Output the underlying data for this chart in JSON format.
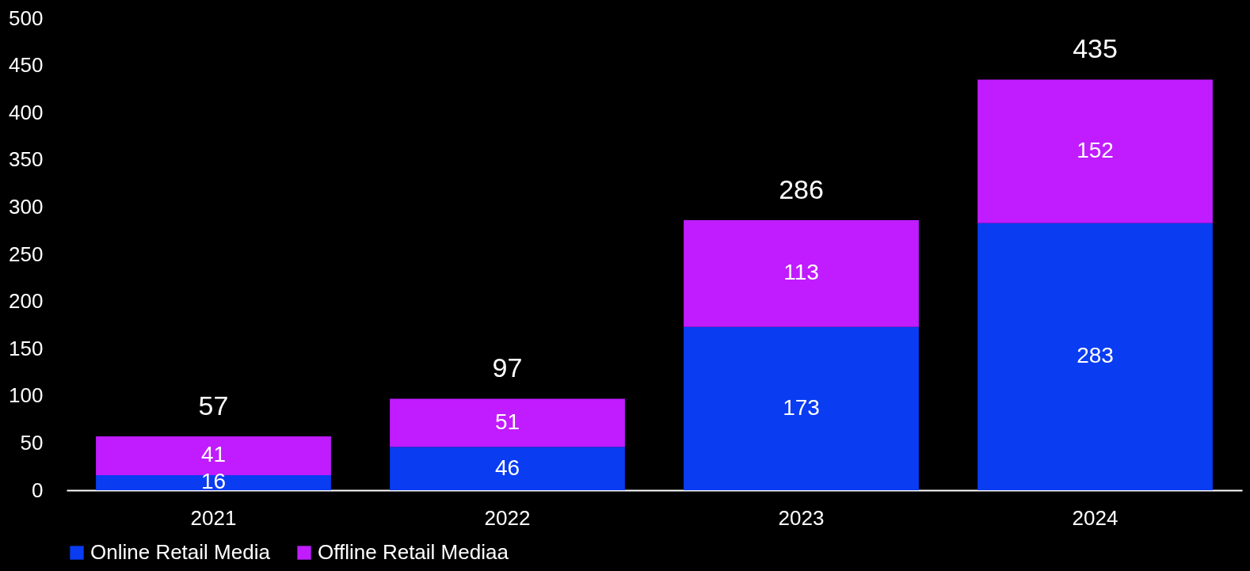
{
  "chart_data": {
    "type": "bar",
    "stacked": true,
    "categories": [
      "2021",
      "2022",
      "2023",
      "2024"
    ],
    "series": [
      {
        "name": "Online Retail Media",
        "color": "#0a3cf2",
        "values": [
          16,
          46,
          173,
          283
        ]
      },
      {
        "name": "Offline Retail Mediaa",
        "color": "#c01cff",
        "values": [
          41,
          51,
          113,
          152
        ]
      }
    ],
    "ylim": [
      0,
      500
    ],
    "yticks": [
      0,
      50,
      100,
      150,
      200,
      250,
      300,
      350,
      400,
      450,
      500
    ],
    "data_labels": true,
    "totals": [
      "57",
      "97",
      "286",
      "435"
    ],
    "legend": "bottom",
    "grid": false
  }
}
